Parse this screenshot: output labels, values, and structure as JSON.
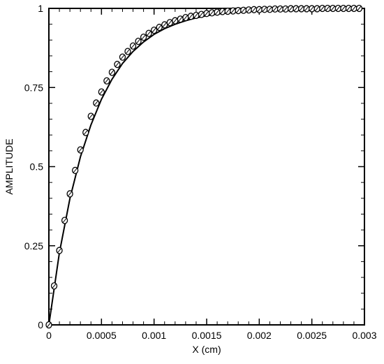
{
  "chart_data": {
    "type": "line",
    "title": "",
    "xlabel": "X (cm)",
    "ylabel": "AMPLITUDE",
    "xlim": [
      0,
      0.003
    ],
    "ylim": [
      0,
      1
    ],
    "grid": false,
    "x_ticks": [
      {
        "value": 0,
        "label": "0"
      },
      {
        "value": 0.0005,
        "label": "0.0005"
      },
      {
        "value": 0.001,
        "label": "0.001"
      },
      {
        "value": 0.0015,
        "label": "0.0015"
      },
      {
        "value": 0.002,
        "label": "0.002"
      },
      {
        "value": 0.0025,
        "label": "0.0025"
      },
      {
        "value": 0.003,
        "label": "0.003"
      }
    ],
    "y_ticks": [
      {
        "value": 0,
        "label": "0"
      },
      {
        "value": 0.25,
        "label": "0.25"
      },
      {
        "value": 0.5,
        "label": "0.5"
      },
      {
        "value": 0.75,
        "label": "0.75"
      },
      {
        "value": 1,
        "label": "1"
      }
    ],
    "series": [
      {
        "style": "solid-line",
        "color": "#000000",
        "x": [
          0,
          0.0001,
          0.0002,
          0.0003,
          0.0004,
          0.0005,
          0.0006,
          0.0007,
          0.0008,
          0.0009,
          0.001,
          0.0011,
          0.0012,
          0.0013,
          0.0014,
          0.0015,
          0.0016,
          0.0017,
          0.0018,
          0.0019,
          0.002,
          0.0021,
          0.0022,
          0.0023,
          0.0024,
          0.0025,
          0.0026,
          0.0027,
          0.0028,
          0.0029,
          0.003
        ],
        "y": [
          0,
          0.228,
          0.399,
          0.531,
          0.632,
          0.713,
          0.776,
          0.826,
          0.864,
          0.894,
          0.918,
          0.936,
          0.95,
          0.961,
          0.97,
          0.977,
          0.982,
          0.986,
          0.989,
          0.992,
          0.994,
          0.995,
          0.996,
          0.997,
          0.998,
          0.998,
          0.999,
          0.999,
          0.999,
          0.999,
          1.0
        ]
      },
      {
        "style": "open-circle-markers",
        "color": "#000000",
        "x": [
          0,
          5e-05,
          0.0001,
          0.00015,
          0.0002,
          0.00025,
          0.0003,
          0.00035,
          0.0004,
          0.00045,
          0.0005,
          0.00055,
          0.0006,
          0.00065,
          0.0007,
          0.00075,
          0.0008,
          0.00085,
          0.0009,
          0.00095,
          0.001,
          0.00105,
          0.0011,
          0.00115,
          0.0012,
          0.00125,
          0.0013,
          0.00135,
          0.0014,
          0.00145,
          0.0015,
          0.00155,
          0.0016,
          0.00165,
          0.0017,
          0.00175,
          0.0018,
          0.00185,
          0.0019,
          0.00195,
          0.002,
          0.00205,
          0.0021,
          0.00215,
          0.0022,
          0.00225,
          0.0023,
          0.00235,
          0.0024,
          0.00245,
          0.0025,
          0.00255,
          0.0026,
          0.00265,
          0.0027,
          0.00275,
          0.0028,
          0.00285,
          0.0029,
          0.00295
        ],
        "y": [
          0,
          0.123,
          0.235,
          0.33,
          0.414,
          0.488,
          0.553,
          0.608,
          0.659,
          0.701,
          0.736,
          0.771,
          0.798,
          0.823,
          0.846,
          0.864,
          0.881,
          0.896,
          0.909,
          0.921,
          0.931,
          0.94,
          0.948,
          0.955,
          0.961,
          0.966,
          0.971,
          0.975,
          0.978,
          0.981,
          0.984,
          0.986,
          0.988,
          0.99,
          0.991,
          0.992,
          0.993,
          0.994,
          0.995,
          0.996,
          0.996,
          0.997,
          0.997,
          0.998,
          0.998,
          0.998,
          0.999,
          0.999,
          0.999,
          0.999,
          0.999,
          0.999,
          1.0,
          1.0,
          1.0,
          1.0,
          1.0,
          1.0,
          1.0,
          1.0
        ]
      }
    ]
  }
}
